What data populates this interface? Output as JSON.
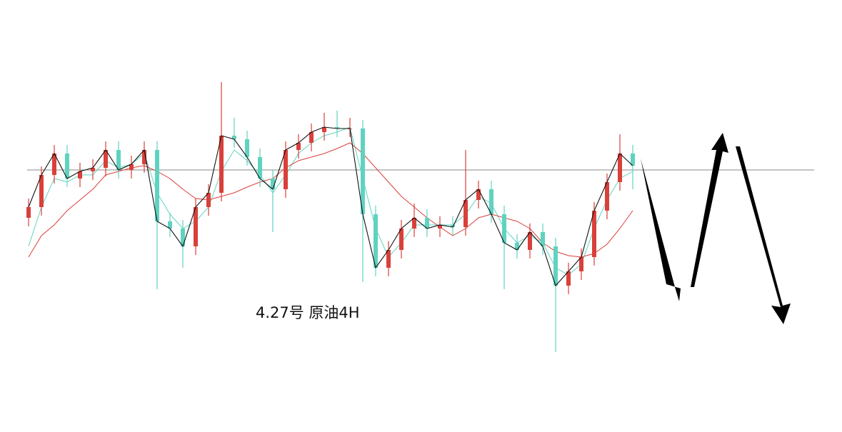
{
  "chart_data": {
    "type": "candlestick",
    "annotation": "4.27号   原油4H",
    "ylim": [
      0,
      605
    ],
    "up_color": "#d9403a",
    "down_color": "#5fd3c0",
    "hline": {
      "value": 367,
      "color": "#8a8a8a"
    },
    "open": [
      300,
      315,
      360,
      390,
      355,
      365,
      370,
      395,
      367,
      375,
      395,
      295,
      285,
      260,
      315,
      335,
      415,
      410,
      385,
      355,
      340,
      395,
      405,
      420,
      427,
      425,
      425,
      305,
      230,
      255,
      285,
      300,
      285,
      290,
      287,
      325,
      340,
      305,
      265,
      255,
      280,
      260,
      205,
      225,
      245,
      310,
      350,
      390
    ],
    "high": [
      327,
      372,
      402,
      402,
      377,
      382,
      407,
      407,
      387,
      407,
      407,
      307,
      297,
      327,
      347,
      490,
      440,
      422,
      397,
      367,
      407,
      417,
      432,
      447,
      450,
      440,
      437,
      317,
      267,
      297,
      320,
      312,
      302,
      302,
      395,
      352,
      352,
      317,
      277,
      292,
      292,
      272,
      237,
      257,
      322,
      362,
      417,
      402
    ],
    "low": [
      288,
      303,
      348,
      343,
      343,
      353,
      358,
      355,
      355,
      363,
      200,
      273,
      230,
      248,
      303,
      323,
      398,
      373,
      343,
      280,
      328,
      383,
      393,
      408,
      413,
      413,
      210,
      218,
      218,
      243,
      273,
      273,
      273,
      275,
      275,
      313,
      293,
      200,
      243,
      243,
      248,
      112,
      193,
      213,
      233,
      298,
      338,
      340
    ],
    "close": [
      315,
      360,
      390,
      355,
      365,
      370,
      395,
      367,
      375,
      395,
      295,
      285,
      260,
      315,
      335,
      415,
      410,
      385,
      355,
      340,
      395,
      405,
      420,
      427,
      425,
      425,
      305,
      230,
      255,
      285,
      300,
      285,
      290,
      287,
      325,
      340,
      305,
      265,
      255,
      280,
      260,
      205,
      225,
      245,
      310,
      350,
      390,
      373
    ],
    "close_line_color": "#111111",
    "lines": [
      {
        "color": "#5fd3c0",
        "values": [
          260,
          315,
          355,
          350,
          360,
          360,
          380,
          370,
          375,
          390,
          335,
          305,
          285,
          295,
          315,
          365,
          395,
          380,
          360,
          335,
          360,
          390,
          405,
          415,
          420,
          427,
          355,
          285,
          245,
          265,
          290,
          290,
          290,
          290,
          305,
          330,
          320,
          285,
          265,
          275,
          265,
          230,
          220,
          235,
          285,
          325,
          355,
          365
        ]
      },
      {
        "color": "#d9403a",
        "values": [
          245,
          275,
          290,
          310,
          325,
          340,
          360,
          365,
          370,
          373,
          365,
          355,
          340,
          327,
          325,
          330,
          335,
          343,
          350,
          355,
          370,
          380,
          385,
          390,
          397,
          405,
          390,
          370,
          350,
          330,
          315,
          300,
          287,
          275,
          285,
          300,
          305,
          300,
          295,
          285,
          265,
          253,
          247,
          245,
          250,
          263,
          285,
          310
        ]
      }
    ]
  }
}
